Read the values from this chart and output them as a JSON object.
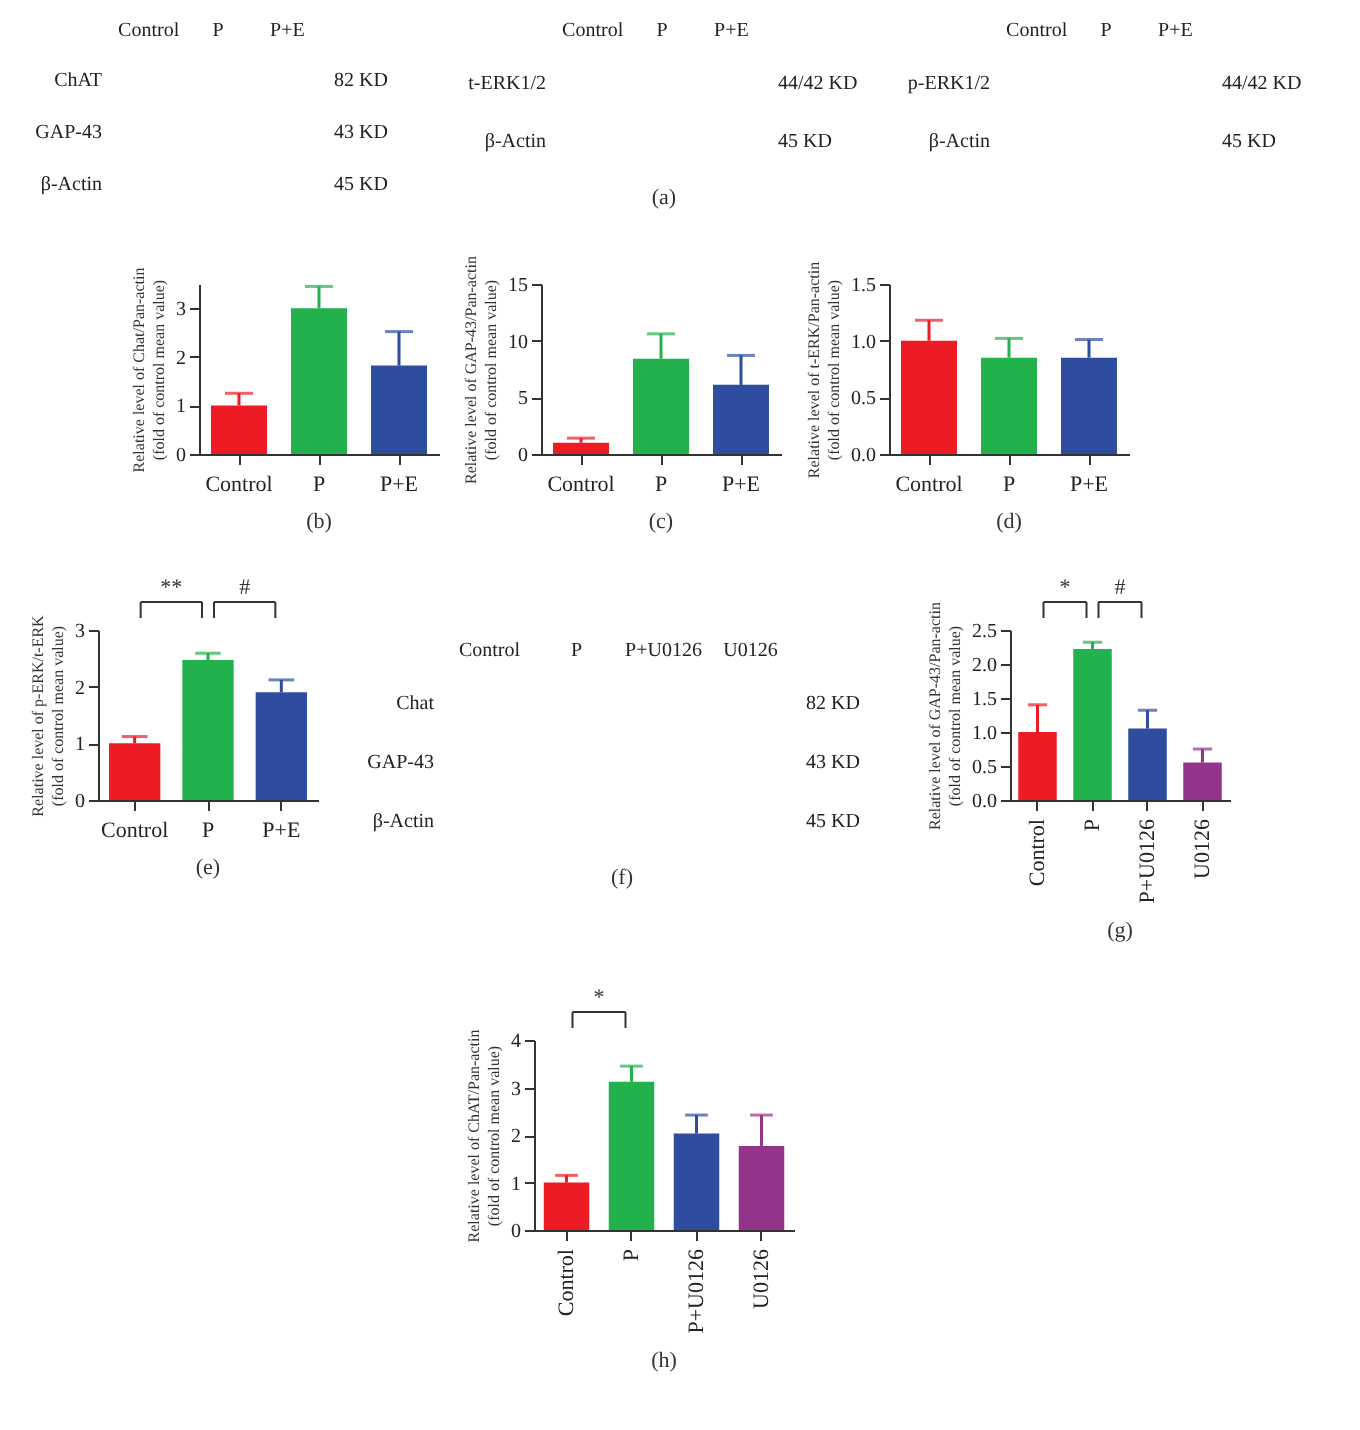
{
  "chart_data": [
    {
      "type": "other",
      "categories": [
        "Control",
        "P",
        "P+E"
      ],
      "y_categories": [
        "ChAT",
        "GAP-43",
        "β-Actin"
      ],
      "y2_categories": [
        "82 KD",
        "43 KD",
        "45 KD"
      ]
    },
    {
      "type": "other",
      "categories": [
        "Control",
        "P",
        "P+E"
      ],
      "y_categories": [
        "t-ERK1/2",
        "β-Actin"
      ],
      "y2_categories": [
        "44/42 KD",
        "45 KD"
      ],
      "annotations": [
        "(a)"
      ]
    },
    {
      "type": "other",
      "categories": [
        "Control",
        "P",
        "P+E"
      ],
      "y_categories": [
        "p-ERK1/2",
        "β-Actin"
      ],
      "y2_categories": [
        "44/42 KD",
        "45 KD"
      ]
    },
    {
      "type": "bar",
      "categories": [
        "Control",
        "P",
        "P+E"
      ],
      "values": [
        1.0,
        3.0,
        1.82
      ],
      "colors": [
        "#ed1c24",
        "#22b14c",
        "#2e4d9f"
      ],
      "errors": [
        [
          1.0,
          1.25
        ],
        [
          3.0,
          3.45
        ],
        [
          1.82,
          2.52
        ]
      ],
      "ylabel": "Relative level of Chat/Pan-actin\n(fold of control mean value)",
      "ylim": [
        0,
        3.5
      ],
      "yticks": [
        0,
        1,
        2,
        3
      ],
      "annotations": [
        "(b)"
      ]
    },
    {
      "type": "bar",
      "categories": [
        "Control",
        "P",
        "P+E"
      ],
      "values": [
        1.0,
        8.4,
        6.1
      ],
      "colors": [
        "#ed1c24",
        "#22b14c",
        "#2e4d9f"
      ],
      "errors": [
        [
          1.0,
          1.4
        ],
        [
          8.4,
          10.6
        ],
        [
          6.1,
          8.7
        ]
      ],
      "ylabel": "Relative level of GAP-43/Pan-actin\n(fold of control mean value)",
      "ylim": [
        0,
        15
      ],
      "yticks": [
        0,
        5,
        10,
        15
      ],
      "annotations": [
        "(c)"
      ]
    },
    {
      "type": "bar",
      "categories": [
        "Control",
        "P",
        "P+E"
      ],
      "values": [
        1.0,
        0.85,
        0.85
      ],
      "colors": [
        "#ed1c24",
        "#22b14c",
        "#2e4d9f"
      ],
      "errors": [
        [
          1.0,
          1.18
        ],
        [
          0.85,
          1.02
        ],
        [
          0.85,
          1.01
        ]
      ],
      "ylabel": "Relative level of t-ERK/Pan-actin\n(fold of control mean value)",
      "ylim": [
        0,
        1.5
      ],
      "yticks": [
        {
          "value": 0,
          "label": "0.0"
        },
        {
          "value": 0.5,
          "label": "0.5"
        },
        {
          "value": 1,
          "label": "1.0"
        },
        {
          "value": 1.5,
          "label": "1.5"
        }
      ],
      "annotations": [
        "(d)"
      ]
    },
    {
      "type": "bar",
      "categories": [
        "Control",
        "P",
        "P+E"
      ],
      "values": [
        1.0,
        2.47,
        1.9
      ],
      "colors": [
        "#ed1c24",
        "#22b14c",
        "#2e4d9f"
      ],
      "errors": [
        [
          1.0,
          1.12
        ],
        [
          2.47,
          2.59
        ],
        [
          1.9,
          2.12
        ]
      ],
      "ylabel": "Relative level of p-ERK/t-ERK\n(fold of control mean value)",
      "ylim": [
        0,
        3
      ],
      "yticks": [
        0,
        1,
        2,
        3
      ],
      "annotations": [
        "**",
        "#",
        "(e)"
      ]
    },
    {
      "type": "other",
      "categories": [
        "Control",
        "P",
        "P+U0126",
        "U0126"
      ],
      "y_categories": [
        "Chat",
        "GAP-43",
        "β-Actin"
      ],
      "y2_categories": [
        "82 KD",
        "43 KD",
        "45 KD"
      ],
      "annotations": [
        "(f)"
      ]
    },
    {
      "type": "bar",
      "categories": [
        "Control",
        "P",
        "P+U0126",
        "U0126"
      ],
      "values": [
        1.0,
        2.22,
        1.05,
        0.55
      ],
      "colors": [
        "#ed1c24",
        "#22b14c",
        "#2e4d9f",
        "#93338a"
      ],
      "errors": [
        [
          1.0,
          1.4
        ],
        [
          2.22,
          2.32
        ],
        [
          1.05,
          1.32
        ],
        [
          0.55,
          0.75
        ]
      ],
      "ylabel": "Relative level of GAP-43/Pan-actin\n(fold of control mean value)",
      "ylim": [
        0,
        2.5
      ],
      "yticks": [
        {
          "value": 0,
          "label": "0.0"
        },
        {
          "value": 0.5,
          "label": "0.5"
        },
        {
          "value": 1,
          "label": "1.0"
        },
        {
          "value": 1.5,
          "label": "1.5"
        },
        {
          "value": 2,
          "label": "2.0"
        },
        {
          "value": 2.5,
          "label": "2.5"
        }
      ],
      "annotations": [
        "*",
        "#",
        "(g)"
      ]
    },
    {
      "type": "bar",
      "categories": [
        "Control",
        "P",
        "P+U0126",
        "U0126"
      ],
      "values": [
        1.0,
        3.12,
        2.03,
        1.77
      ],
      "colors": [
        "#ed1c24",
        "#22b14c",
        "#2e4d9f",
        "#93338a"
      ],
      "errors": [
        [
          1.0,
          1.15
        ],
        [
          3.12,
          3.45
        ],
        [
          2.03,
          2.42
        ],
        [
          1.77,
          2.42
        ]
      ],
      "ylabel": "Relative level of ChAT/Pan-actin\n(fold of control mean value)",
      "ylim": [
        0,
        4
      ],
      "yticks": [
        0,
        1,
        2,
        3,
        4
      ],
      "annotations": [
        "*",
        "(h)"
      ]
    }
  ]
}
